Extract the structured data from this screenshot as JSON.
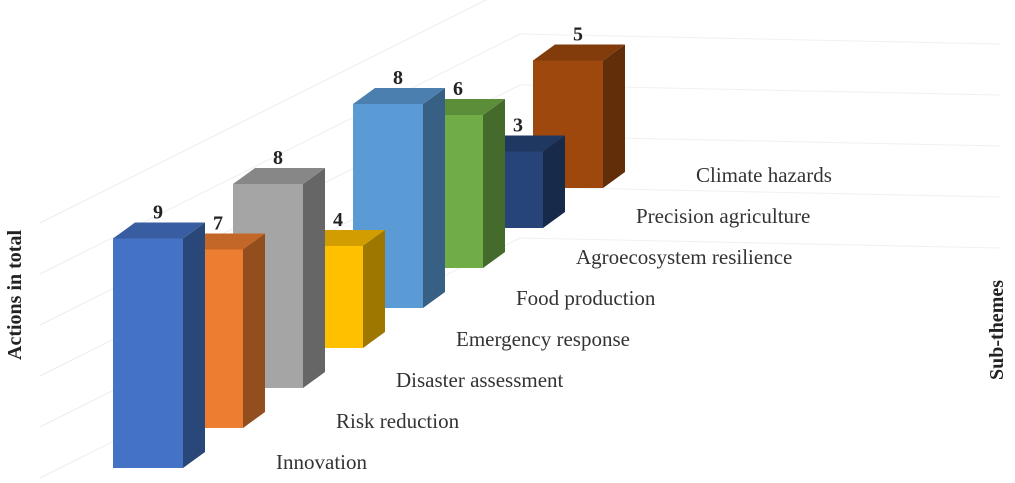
{
  "chart_data": {
    "type": "bar",
    "style": "3d-perspective-columns",
    "categories": [
      "Innovation",
      "Risk reduction",
      "Disaster assessment",
      "Emergency response",
      "Food production",
      "Agroecosystem resilience",
      "Precision agriculture",
      "Climate hazards"
    ],
    "values": [
      9,
      7,
      8,
      4,
      8,
      6,
      3,
      5
    ],
    "colors": [
      "#4472c4",
      "#ed7d31",
      "#a5a5a5",
      "#ffc000",
      "#5b9bd5",
      "#70ad47",
      "#264478",
      "#9e480e"
    ],
    "ylabel": "Actions in total",
    "zlabel": "Sub-themes",
    "ylim": [
      0,
      10
    ],
    "grid": true
  }
}
